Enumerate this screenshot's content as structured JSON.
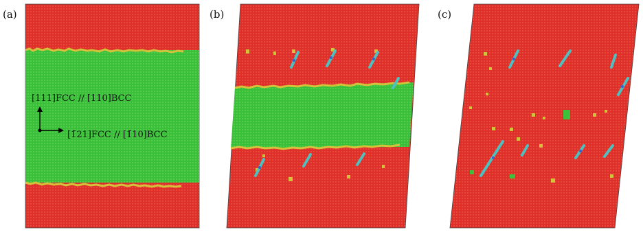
{
  "panels": [
    {
      "label": "(a)"
    },
    {
      "label": "(b)"
    },
    {
      "label": "(c)"
    }
  ],
  "annotation": {
    "vertical_direction": "[111]FCC // [110]BCC",
    "horizontal_direction": "[1̄21]FCC // [1̄10]BCC"
  },
  "colors": {
    "fcc_red": "#e0302a",
    "bcc_green": "#3cc23a",
    "boundary_yellow": "#d4c23a",
    "defect_blue": "#3a5fcf",
    "defect_cyan": "#4fc0c0"
  }
}
